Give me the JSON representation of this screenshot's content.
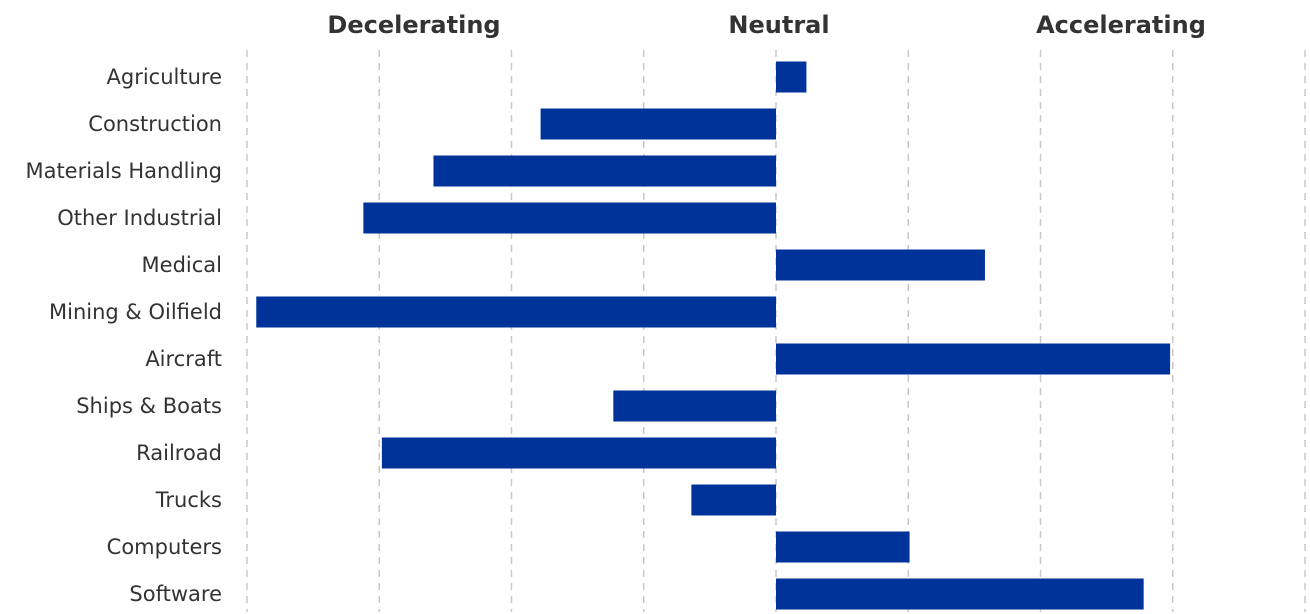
{
  "chart_data": {
    "type": "bar",
    "orientation": "horizontal",
    "headers": {
      "left": "Decelerating",
      "center": "Neutral",
      "right": "Accelerating"
    },
    "categories": [
      "Agriculture",
      "Construction",
      "Materials Handling",
      "Other Industrial",
      "Medical",
      "Mining & Oilfield",
      "Aircraft",
      "Ships & Boats",
      "Railroad",
      "Trucks",
      "Computers",
      "Software"
    ],
    "values": [
      0.23,
      -1.78,
      -2.59,
      -3.12,
      1.58,
      -3.93,
      2.98,
      -1.23,
      -2.98,
      -0.64,
      1.01,
      2.78
    ],
    "xlim": [
      -4,
      4
    ],
    "grid": true,
    "colors": {
      "bar": "#003399",
      "grid": "#c8c8c8",
      "text": "#333333"
    }
  }
}
